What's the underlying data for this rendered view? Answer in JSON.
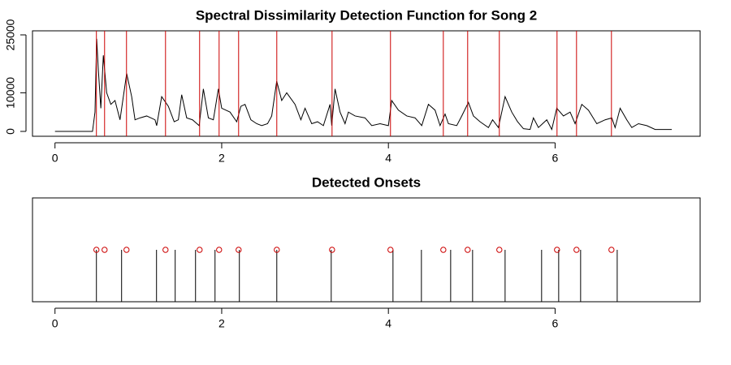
{
  "chart_data": [
    {
      "type": "line",
      "title": "Spectral Dissimilarity Detection Function for Song 2",
      "x": [
        0,
        0.45,
        0.48,
        0.5,
        0.52,
        0.55,
        0.58,
        0.62,
        0.67,
        0.72,
        0.78,
        0.86,
        0.92,
        0.96,
        1.02,
        1.1,
        1.2,
        1.22,
        1.28,
        1.36,
        1.43,
        1.48,
        1.52,
        1.58,
        1.65,
        1.73,
        1.78,
        1.84,
        1.9,
        1.96,
        2.0,
        2.1,
        2.18,
        2.23,
        2.28,
        2.35,
        2.42,
        2.48,
        2.55,
        2.6,
        2.66,
        2.72,
        2.78,
        2.88,
        2.95,
        3.0,
        3.08,
        3.15,
        3.22,
        3.3,
        3.32,
        3.36,
        3.42,
        3.48,
        3.52,
        3.6,
        3.72,
        3.8,
        3.9,
        4.0,
        4.04,
        4.12,
        4.22,
        4.32,
        4.4,
        4.48,
        4.56,
        4.62,
        4.68,
        4.72,
        4.82,
        4.88,
        4.96,
        5.02,
        5.1,
        5.2,
        5.25,
        5.32,
        5.4,
        5.48,
        5.55,
        5.62,
        5.7,
        5.74,
        5.8,
        5.9,
        5.96,
        6.02,
        6.1,
        6.18,
        6.24,
        6.32,
        6.4,
        6.5,
        6.6,
        6.68,
        6.72,
        6.78,
        6.86,
        6.92,
        7.0,
        7.1,
        7.2,
        7.3,
        7.4
      ],
      "values": [
        0,
        0,
        5000,
        24000,
        16000,
        6000,
        19700,
        10000,
        7000,
        8000,
        3000,
        15000,
        9000,
        3000,
        3500,
        4000,
        3000,
        1500,
        9000,
        6500,
        2500,
        3000,
        9500,
        3500,
        3000,
        1500,
        11000,
        3500,
        3000,
        11000,
        6000,
        5000,
        2500,
        6500,
        7000,
        3000,
        2000,
        1500,
        2000,
        4000,
        13000,
        8000,
        10000,
        7000,
        3000,
        6000,
        2000,
        2500,
        1500,
        7000,
        1500,
        11000,
        5000,
        2000,
        5000,
        4000,
        3500,
        1500,
        2000,
        1500,
        8000,
        5500,
        4000,
        3500,
        1500,
        7000,
        5500,
        1500,
        4500,
        2000,
        1500,
        4000,
        7500,
        4000,
        2500,
        1000,
        3000,
        1000,
        9000,
        5000,
        2500,
        700,
        500,
        3500,
        1000,
        3000,
        500,
        6000,
        4000,
        5000,
        2000,
        7000,
        5500,
        2000,
        3000,
        3500,
        1000,
        6000,
        3000,
        1000,
        2000,
        1500,
        500,
        500,
        500
      ],
      "color": "#000000",
      "onsets": {
        "x": [
          0.497,
          0.595,
          0.858,
          1.326,
          1.735,
          1.969,
          2.203,
          2.661,
          3.324,
          4.025,
          4.659,
          4.951,
          5.331,
          6.023,
          6.257,
          6.676
        ],
        "color": "#cc0000"
      },
      "xlim": [
        -0.27,
        7.74
      ],
      "xticks": [
        0,
        2,
        4,
        6
      ],
      "ylim": [
        -1260,
        26050
      ],
      "yticks": [
        0,
        10000,
        25000
      ]
    },
    {
      "type": "stem",
      "title": "Detected Onsets",
      "x": [
        0.497,
        0.799,
        1.218,
        1.442,
        1.686,
        1.92,
        2.212,
        2.661,
        3.314,
        4.055,
        4.396,
        4.747,
        5.01,
        5.4,
        5.838,
        6.043,
        6.306,
        6.745
      ],
      "values": [
        1,
        1,
        1,
        1,
        1,
        1,
        1,
        1,
        1,
        1,
        1,
        1,
        1,
        1,
        1,
        1,
        1,
        1
      ],
      "color": "#000000",
      "points": {
        "x": [
          0.497,
          0.595,
          0.858,
          1.326,
          1.735,
          1.969,
          2.203,
          2.661,
          3.324,
          4.025,
          4.659,
          4.951,
          5.331,
          6.023,
          6.257,
          6.676
        ],
        "values": [
          1,
          1,
          1,
          1,
          1,
          1,
          1,
          1,
          1,
          1,
          1,
          1,
          1,
          1,
          1,
          1
        ],
        "color": "#cc0000"
      },
      "xlim": [
        -0.27,
        7.74
      ],
      "xticks": [
        0,
        2,
        4,
        6
      ],
      "ylim": [
        0,
        2
      ]
    }
  ]
}
